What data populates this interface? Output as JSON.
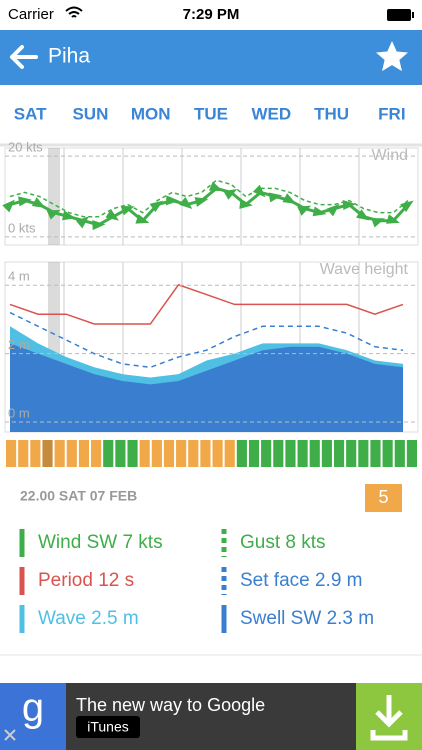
{
  "status_bar": {
    "carrier": "Carrier",
    "time": "7:29 PM"
  },
  "header": {
    "title": "Piha"
  },
  "days": [
    "SAT",
    "SUN",
    "MON",
    "TUE",
    "WED",
    "THU",
    "FRI"
  ],
  "chart_data": [
    {
      "type": "line",
      "title": "Wind",
      "ylim": [
        -2,
        22
      ],
      "yticks": [
        {
          "value": 0,
          "label": "0 kts"
        },
        {
          "value": 20,
          "label": "20 kts"
        }
      ],
      "series": [
        {
          "name": "Wind",
          "color": "#3fae49",
          "values": [
            8,
            9,
            8,
            6,
            5,
            4,
            3,
            5,
            7,
            4,
            8,
            9,
            8,
            9,
            12,
            11,
            8,
            11,
            10,
            9,
            7,
            6,
            7,
            8,
            5,
            4,
            4,
            8
          ]
        },
        {
          "name": "Gust",
          "color": "#3fae49",
          "dashed": true,
          "values": [
            10,
            11,
            10,
            8,
            6,
            5,
            5,
            7,
            8,
            6,
            9,
            11,
            10,
            11,
            14,
            13,
            10,
            12,
            12,
            11,
            9,
            8,
            8,
            9,
            7,
            6,
            6,
            9
          ]
        }
      ]
    },
    {
      "type": "area",
      "title": "Wave height",
      "ylim": [
        0,
        4.3
      ],
      "yticks": [
        {
          "value": 0,
          "label": "0 m"
        },
        {
          "value": 2,
          "label": "2 m"
        },
        {
          "value": 4,
          "label": "4 m"
        }
      ],
      "y2lim": [
        0,
        15
      ],
      "series": [
        {
          "name": "Wave",
          "color": "#4fc0e3",
          "values": [
            2.8,
            2.3,
            1.9,
            1.6,
            1.4,
            1.3,
            1.4,
            1.8,
            2.0,
            2.3,
            2.3,
            2.3,
            2.1,
            1.8,
            1.7
          ]
        },
        {
          "name": "Swell",
          "color": "#3a7fcf",
          "values": [
            2.3,
            2.0,
            1.7,
            1.4,
            1.2,
            1.1,
            1.2,
            1.5,
            1.8,
            2.1,
            2.2,
            2.2,
            2.0,
            1.7,
            1.6
          ]
        },
        {
          "name": "Set face",
          "color": "#3a7fcf",
          "dashed": true,
          "values": [
            3.2,
            2.8,
            2.4,
            2.0,
            1.7,
            1.6,
            1.9,
            2.1,
            2.5,
            2.8,
            2.8,
            2.8,
            2.6,
            2.2,
            2.1
          ]
        },
        {
          "name": "Period",
          "color": "#d9534f",
          "axis": "y2",
          "values": [
            12,
            11,
            11,
            10,
            10,
            10,
            14,
            13,
            12,
            12,
            12,
            12,
            12,
            11,
            12
          ]
        }
      ]
    }
  ],
  "rating_strip": [
    "#f0a848",
    "#f0a848",
    "#f0a848",
    "#c48a3e",
    "#f0a848",
    "#f0a848",
    "#f0a848",
    "#f0a848",
    "#3fae49",
    "#3fae49",
    "#3fae49",
    "#f0a848",
    "#f0a848",
    "#f0a848",
    "#f0a848",
    "#f0a848",
    "#f0a848",
    "#f0a848",
    "#f0a848",
    "#3fae49",
    "#3fae49",
    "#3fae49",
    "#3fae49",
    "#3fae49",
    "#3fae49",
    "#3fae49",
    "#3fae49",
    "#3fae49",
    "#3fae49",
    "#3fae49",
    "#3fae49",
    "#3fae49",
    "#3fae49",
    "#3fae49"
  ],
  "detail": {
    "time": "22.00 SAT 07 FEB",
    "rating": "5"
  },
  "legend": [
    {
      "text": "Wind SW 7 kts",
      "color": "#3fae49",
      "dashed": false
    },
    {
      "text": "Gust 8 kts",
      "color": "#3fae49",
      "dashed": true
    },
    {
      "text": "Period 12 s",
      "color": "#d9534f",
      "dashed": false
    },
    {
      "text": "Set face 2.9 m",
      "color": "#3a7fcf",
      "dashed": true
    },
    {
      "text": "Wave 2.5 m",
      "color": "#4fc0e3",
      "dashed": false
    },
    {
      "text": "Swell SW 2.3 m",
      "color": "#3a7fcf",
      "dashed": false
    }
  ],
  "ad": {
    "logo": "g",
    "text": "The new way to Google",
    "badge": "iTunes"
  }
}
